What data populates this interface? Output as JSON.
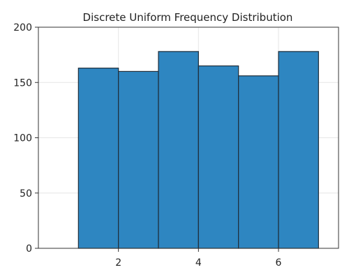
{
  "chart_data": {
    "type": "bar",
    "title": "Discrete Uniform Frequency Distribution",
    "xlabel": "",
    "ylabel": "",
    "bins": [
      {
        "start": 1,
        "end": 2,
        "count": 163
      },
      {
        "start": 2,
        "end": 3,
        "count": 160
      },
      {
        "start": 3,
        "end": 4,
        "count": 178
      },
      {
        "start": 4,
        "end": 5,
        "count": 165
      },
      {
        "start": 5,
        "end": 6,
        "count": 156
      },
      {
        "start": 6,
        "end": 7,
        "count": 178
      }
    ],
    "xlim": [
      0,
      7.5
    ],
    "ylim": [
      0,
      200
    ],
    "xticks": [
      2,
      4,
      6
    ],
    "yticks": [
      0,
      50,
      100,
      150,
      200
    ],
    "grid": true,
    "legend": "none",
    "bar_color": "#2e86c1",
    "bar_edge_color": "#1f2d3a"
  }
}
